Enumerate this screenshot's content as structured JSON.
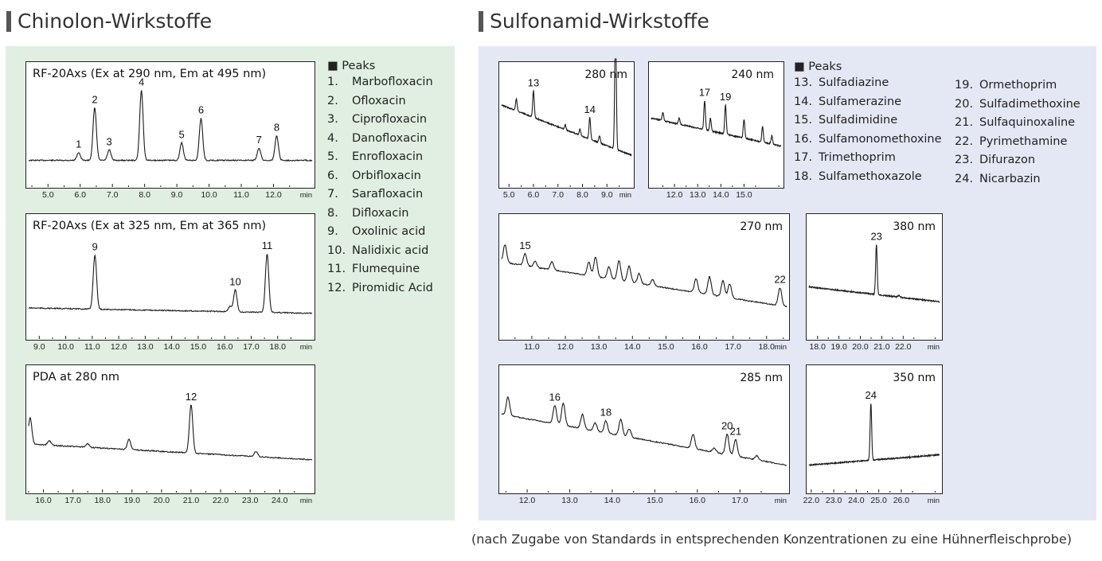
{
  "sections": {
    "left_title": "Chinolon-Wirkstoffe",
    "right_title": "Sulfonamid-Wirkstoffe"
  },
  "legends": {
    "left": {
      "header": "■ Peaks",
      "items": [
        {
          "num": "1.",
          "name": "Marbofloxacin"
        },
        {
          "num": "2.",
          "name": "Ofloxacin"
        },
        {
          "num": "3.",
          "name": "Ciprofloxacin"
        },
        {
          "num": "4.",
          "name": "Danofloxacin"
        },
        {
          "num": "5.",
          "name": "Enrofloxacin"
        },
        {
          "num": "6.",
          "name": "Orbifloxacin"
        },
        {
          "num": "7.",
          "name": "Sarafloxacin"
        },
        {
          "num": "8.",
          "name": "Difloxacin"
        },
        {
          "num": "9.",
          "name": "Oxolinic acid"
        },
        {
          "num": "10.",
          "name": "Nalidixic acid"
        },
        {
          "num": "11.",
          "name": "Flumequine"
        },
        {
          "num": "12.",
          "name": "Piromidic Acid"
        }
      ]
    },
    "right_col1": {
      "header": "■ Peaks",
      "items": [
        {
          "num": "13.",
          "name": "Sulfadiazine"
        },
        {
          "num": "14.",
          "name": "Sulfamerazine"
        },
        {
          "num": "15.",
          "name": "Sulfadimidine"
        },
        {
          "num": "16.",
          "name": "Sulfamonomethoxine"
        },
        {
          "num": "17.",
          "name": "Trimethoprim"
        },
        {
          "num": "18.",
          "name": "Sulfamethoxazole"
        }
      ]
    },
    "right_col2": {
      "items": [
        {
          "num": "19.",
          "name": "Ormethoprim"
        },
        {
          "num": "20.",
          "name": "Sulfadimethoxine"
        },
        {
          "num": "21.",
          "name": "Sulfaquinoxaline"
        },
        {
          "num": "22.",
          "name": "Pyrimethamine"
        },
        {
          "num": "23.",
          "name": "Difurazon"
        },
        {
          "num": "24.",
          "name": "Nicarbazin"
        }
      ]
    }
  },
  "footnote": "(nach Zugabe von Standards in entsprechenden Konzentrationen zu eine Hühnerfleischprobe)",
  "chart_data": [
    {
      "id": "c1",
      "type": "line",
      "title": "RF-20Axs (Ex at 290 nm, Em at 495 nm)",
      "wavelength": "",
      "xlim": [
        4.4,
        13.2
      ],
      "unit_label": "min",
      "ticks": [
        5.0,
        6.0,
        7.0,
        8.0,
        9.0,
        10.0,
        11.0,
        12.0
      ],
      "tick_labels": [
        "5.0",
        "6.0",
        "7.0",
        "8.0",
        "9.0",
        "10.0",
        "11.0",
        "12.0"
      ],
      "baseline": {
        "start": 0.05,
        "end": 0.05
      },
      "peaks": [
        {
          "label": "1",
          "x": 5.95,
          "h": 0.09
        },
        {
          "label": "2",
          "x": 6.45,
          "h": 0.6
        },
        {
          "label": "3",
          "x": 6.9,
          "h": 0.12
        },
        {
          "label": "4",
          "x": 7.9,
          "h": 0.8
        },
        {
          "label": "5",
          "x": 9.15,
          "h": 0.2
        },
        {
          "label": "6",
          "x": 9.75,
          "h": 0.48
        },
        {
          "label": "7",
          "x": 11.55,
          "h": 0.14
        },
        {
          "label": "8",
          "x": 12.1,
          "h": 0.28
        }
      ]
    },
    {
      "id": "c2",
      "type": "line",
      "title": "RF-20Axs (Ex at 325 nm, Em at 365 nm)",
      "wavelength": "",
      "xlim": [
        8.6,
        19.3
      ],
      "unit_label": "min",
      "ticks": [
        9.0,
        10.0,
        11.0,
        12.0,
        13.0,
        14.0,
        15.0,
        16.0,
        17.0,
        18.0
      ],
      "tick_labels": [
        "9.0",
        "10.0",
        "11.0",
        "12.0",
        "13.0",
        "14.0",
        "15.0",
        "16.0",
        "17.0",
        "18.0"
      ],
      "baseline": {
        "start": 0.1,
        "end": 0.04
      },
      "peaks": [
        {
          "label": "9",
          "x": 11.1,
          "h": 0.62
        },
        {
          "label": "",
          "x": 16.2,
          "h": 0.06
        },
        {
          "label": "10",
          "x": 16.4,
          "h": 0.25
        },
        {
          "label": "11",
          "x": 17.6,
          "h": 0.67
        }
      ]
    },
    {
      "id": "c3",
      "type": "line",
      "title": "PDA at 280 nm",
      "wavelength": "",
      "xlim": [
        15.5,
        25.1
      ],
      "unit_label": "min",
      "ticks": [
        16.0,
        17.0,
        18.0,
        19.0,
        20.0,
        21.0,
        22.0,
        23.0,
        24.0
      ],
      "tick_labels": [
        "16.0",
        "17.0",
        "18.0",
        "19.0",
        "20.0",
        "21.0",
        "22.0",
        "23.0",
        "24.0"
      ],
      "baseline": {
        "start": 0.3,
        "end": 0.12
      },
      "peaks": [
        {
          "label": "",
          "x": 15.55,
          "h": 0.3
        },
        {
          "label": "",
          "x": 16.2,
          "h": 0.05
        },
        {
          "label": "",
          "x": 17.5,
          "h": 0.04
        },
        {
          "label": "",
          "x": 18.9,
          "h": 0.12
        },
        {
          "label": "12",
          "x": 21.0,
          "h": 0.55
        },
        {
          "label": "",
          "x": 23.2,
          "h": 0.06
        }
      ]
    },
    {
      "id": "c4",
      "type": "line",
      "title": "",
      "wavelength": "280 nm",
      "xlim": [
        4.7,
        10.0
      ],
      "unit_label": "min",
      "ticks": [
        5.0,
        6.0,
        7.0,
        8.0,
        9.0
      ],
      "tick_labels": [
        "5.0",
        "6.0",
        "7.0",
        "8.0",
        "9.0"
      ],
      "baseline": {
        "start": 0.5,
        "end": 0.08
      },
      "peaks": [
        {
          "label": "",
          "x": 5.3,
          "h": 0.1
        },
        {
          "label": "13",
          "x": 6.0,
          "h": 0.22
        },
        {
          "label": "",
          "x": 7.3,
          "h": 0.04
        },
        {
          "label": "",
          "x": 7.9,
          "h": 0.05
        },
        {
          "label": "14",
          "x": 8.3,
          "h": 0.18
        },
        {
          "label": "",
          "x": 8.7,
          "h": 0.06
        },
        {
          "label": "",
          "x": 9.35,
          "h": 1.1
        }
      ]
    },
    {
      "id": "c5",
      "type": "line",
      "title": "",
      "wavelength": "240 nm",
      "xlim": [
        11.0,
        16.6
      ],
      "unit_label": "",
      "ticks": [
        12.0,
        13.0,
        14.0,
        15.0
      ],
      "tick_labels": [
        "12.0",
        "13.0",
        "14.0",
        "15.0"
      ],
      "baseline": {
        "start": 0.45,
        "end": 0.18
      },
      "peaks": [
        {
          "label": "",
          "x": 11.5,
          "h": 0.08
        },
        {
          "label": "",
          "x": 12.2,
          "h": 0.06
        },
        {
          "label": "17",
          "x": 13.3,
          "h": 0.28
        },
        {
          "label": "",
          "x": 13.55,
          "h": 0.12
        },
        {
          "label": "19",
          "x": 14.2,
          "h": 0.28
        },
        {
          "label": "",
          "x": 15.0,
          "h": 0.18
        },
        {
          "label": "",
          "x": 15.8,
          "h": 0.15
        },
        {
          "label": "",
          "x": 16.2,
          "h": 0.08
        }
      ]
    },
    {
      "id": "c6",
      "type": "line",
      "title": "",
      "wavelength": "270 nm",
      "xlim": [
        10.1,
        18.6
      ],
      "unit_label": "min",
      "ticks": [
        11.0,
        12.0,
        13.0,
        14.0,
        15.0,
        16.0,
        17.0,
        18.0
      ],
      "tick_labels": [
        "11.0",
        "12.0",
        "13.0",
        "14.0",
        "15.0",
        "16.0",
        "17.0",
        "18.0"
      ],
      "baseline": {
        "start": 0.55,
        "end": 0.1
      },
      "peaks": [
        {
          "label": "",
          "x": 10.2,
          "h": 0.18
        },
        {
          "label": "15",
          "x": 10.8,
          "h": 0.12
        },
        {
          "label": "",
          "x": 11.1,
          "h": 0.06
        },
        {
          "label": "",
          "x": 11.6,
          "h": 0.08
        },
        {
          "label": "",
          "x": 12.7,
          "h": 0.14
        },
        {
          "label": "",
          "x": 12.9,
          "h": 0.2
        },
        {
          "label": "",
          "x": 13.3,
          "h": 0.12
        },
        {
          "label": "",
          "x": 13.6,
          "h": 0.2
        },
        {
          "label": "",
          "x": 13.9,
          "h": 0.16
        },
        {
          "label": "",
          "x": 14.2,
          "h": 0.1
        },
        {
          "label": "",
          "x": 14.6,
          "h": 0.06
        },
        {
          "label": "",
          "x": 15.9,
          "h": 0.14
        },
        {
          "label": "",
          "x": 16.3,
          "h": 0.18
        },
        {
          "label": "",
          "x": 16.7,
          "h": 0.16
        },
        {
          "label": "",
          "x": 16.9,
          "h": 0.14
        },
        {
          "label": "22",
          "x": 18.4,
          "h": 0.18
        }
      ]
    },
    {
      "id": "c7",
      "type": "line",
      "title": "",
      "wavelength": "380 nm",
      "xlim": [
        17.6,
        23.7
      ],
      "unit_label": "min",
      "ticks": [
        18.0,
        19.0,
        20.0,
        21.0,
        22.0
      ],
      "tick_labels": [
        "18.0",
        "19.0",
        "20.0",
        "21.0",
        "22.0"
      ],
      "baseline": {
        "start": 0.3,
        "end": 0.15
      },
      "peaks": [
        {
          "label": "23",
          "x": 20.75,
          "h": 0.5
        },
        {
          "label": "",
          "x": 21.8,
          "h": 0.02
        }
      ]
    },
    {
      "id": "c8",
      "type": "line",
      "title": "",
      "wavelength": "285 nm",
      "xlim": [
        11.4,
        18.1
      ],
      "unit_label": "min",
      "ticks": [
        12.0,
        13.0,
        14.0,
        15.0,
        16.0,
        17.0
      ],
      "tick_labels": [
        "12.0",
        "13.0",
        "14.0",
        "15.0",
        "16.0",
        "17.0"
      ],
      "baseline": {
        "start": 0.55,
        "end": 0.05
      },
      "peaks": [
        {
          "label": "",
          "x": 11.55,
          "h": 0.18
        },
        {
          "label": "16",
          "x": 12.65,
          "h": 0.18
        },
        {
          "label": "",
          "x": 12.85,
          "h": 0.22
        },
        {
          "label": "",
          "x": 13.3,
          "h": 0.14
        },
        {
          "label": "",
          "x": 13.6,
          "h": 0.08
        },
        {
          "label": "18",
          "x": 13.85,
          "h": 0.12
        },
        {
          "label": "",
          "x": 14.2,
          "h": 0.16
        },
        {
          "label": "",
          "x": 14.4,
          "h": 0.08
        },
        {
          "label": "",
          "x": 15.9,
          "h": 0.14
        },
        {
          "label": "",
          "x": 16.4,
          "h": 0.04
        },
        {
          "label": "20",
          "x": 16.7,
          "h": 0.2
        },
        {
          "label": "21",
          "x": 16.9,
          "h": 0.16
        },
        {
          "label": "",
          "x": 17.4,
          "h": 0.04
        }
      ]
    },
    {
      "id": "c9",
      "type": "line",
      "title": "",
      "wavelength": "350 nm",
      "xlim": [
        21.9,
        27.7
      ],
      "unit_label": "min",
      "ticks": [
        22.0,
        23.0,
        24.0,
        25.0,
        26.0
      ],
      "tick_labels": [
        "22.0",
        "23.0",
        "24.0",
        "25.0",
        "26.0"
      ],
      "baseline": {
        "start": 0.05,
        "end": 0.15
      },
      "peaks": [
        {
          "label": "24",
          "x": 24.65,
          "h": 0.55
        }
      ]
    }
  ]
}
